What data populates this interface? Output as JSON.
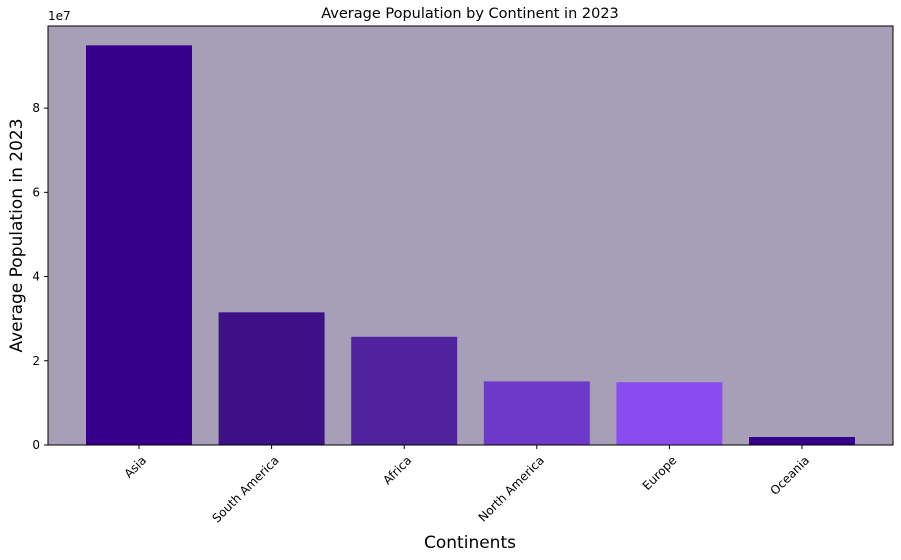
{
  "chart_data": {
    "type": "bar",
    "title": "Average Population by Continent in 2023",
    "xlabel": "Continents",
    "ylabel": "Average Population in 2023",
    "y_offset_label": "1e7",
    "categories": [
      "Asia",
      "South America",
      "Africa",
      "North America",
      "Europe",
      "Oceania"
    ],
    "values": [
      94900000,
      31500000,
      25700000,
      15100000,
      14900000,
      1900000
    ],
    "bar_colors": [
      "#36008a",
      "#3d1087",
      "#51229e",
      "#6e38c8",
      "#8a4cf0",
      "#36008a"
    ],
    "ylim": [
      0,
      99500000
    ],
    "yticks": [
      0,
      20000000,
      40000000,
      60000000,
      80000000
    ],
    "ytick_labels": [
      "0",
      "2",
      "4",
      "6",
      "8"
    ],
    "grid": false,
    "legend": "none",
    "plot_background": "#a79fb7"
  }
}
